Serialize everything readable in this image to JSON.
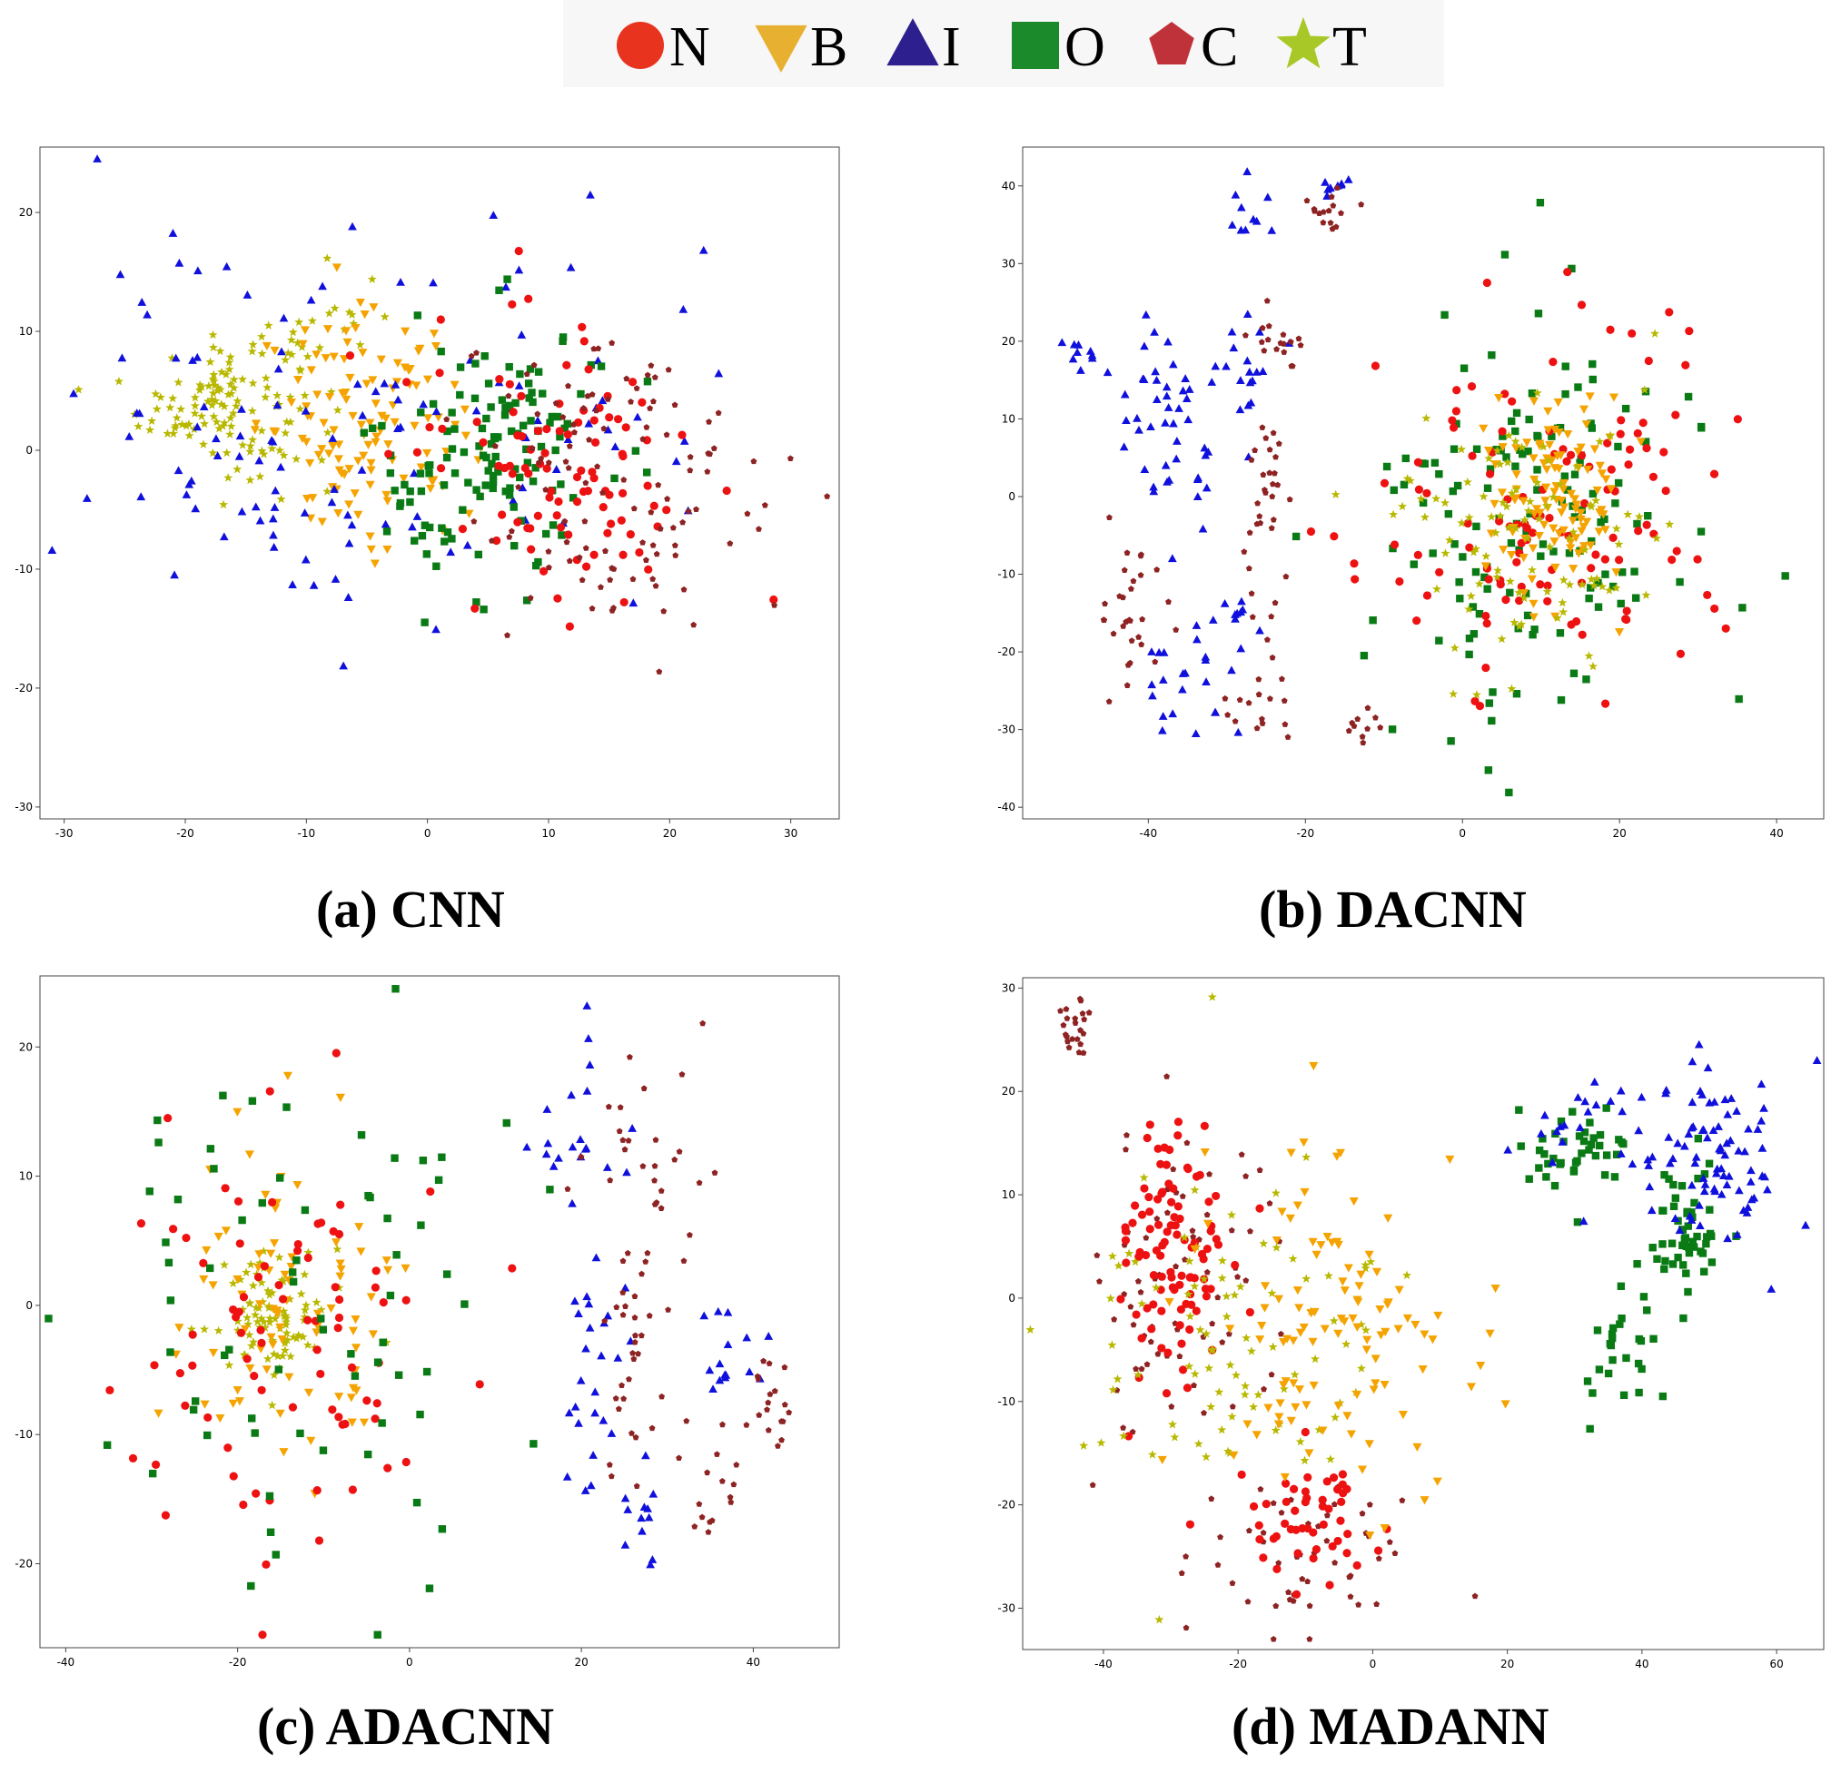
{
  "legend": [
    {
      "label": "N",
      "class": "N",
      "shape": "circle",
      "color": "#e8331e"
    },
    {
      "label": "B",
      "class": "B",
      "shape": "triangle-down",
      "color": "#e8b030"
    },
    {
      "label": "I",
      "class": "I",
      "shape": "triangle-up",
      "color": "#2e1f8f"
    },
    {
      "label": "O",
      "class": "O",
      "shape": "square",
      "color": "#1a8a2a"
    },
    {
      "label": "C",
      "class": "C",
      "shape": "pentagon",
      "color": "#c0323a"
    },
    {
      "label": "T",
      "class": "T",
      "shape": "star",
      "color": "#a8c828"
    }
  ],
  "point_colors": {
    "N": "#ee1111",
    "B": "#f5a300",
    "I": "#1010dd",
    "O": "#0a7a14",
    "C": "#8e2323",
    "T": "#b8b800"
  },
  "chart_data": [
    {
      "type": "scatter",
      "title": "",
      "caption": "(a) CNN",
      "xlim": [
        -32,
        34
      ],
      "ylim": [
        -31,
        25.5
      ],
      "xticks": [
        -30,
        -20,
        -10,
        0,
        10,
        20,
        30
      ],
      "yticks": [
        -30,
        -20,
        -10,
        0,
        10,
        20
      ],
      "series": [
        {
          "name": "T",
          "clusters": [
            {
              "cx": -17,
              "cy": 4,
              "sx": 4.5,
              "sy": 4,
              "n": 110
            },
            {
              "cx": -10,
              "cy": 8,
              "sx": 5,
              "sy": 5,
              "n": 30
            }
          ]
        },
        {
          "name": "B",
          "clusters": [
            {
              "cx": -5,
              "cy": 2,
              "sx": 6,
              "sy": 6,
              "n": 120
            }
          ]
        },
        {
          "name": "I",
          "clusters": [
            {
              "cx": -10,
              "cy": 2,
              "sx": 12,
              "sy": 11,
              "n": 90
            },
            {
              "cx": 10,
              "cy": 5,
              "sx": 10,
              "sy": 10,
              "n": 30
            }
          ]
        },
        {
          "name": "O",
          "clusters": [
            {
              "cx": 5,
              "cy": -1,
              "sx": 6.5,
              "sy": 8,
              "n": 130
            }
          ]
        },
        {
          "name": "N",
          "clusters": [
            {
              "cx": 11,
              "cy": 0,
              "sx": 8,
              "sy": 8,
              "n": 100
            }
          ]
        },
        {
          "name": "C",
          "clusters": [
            {
              "cx": 16,
              "cy": -3,
              "sx": 9,
              "sy": 10,
              "n": 110
            }
          ]
        }
      ]
    },
    {
      "type": "scatter",
      "title": "",
      "caption": "(b) DACNN",
      "xlim": [
        -56,
        46
      ],
      "ylim": [
        -41.5,
        45
      ],
      "xticks": [
        -40,
        -20,
        0,
        20,
        40
      ],
      "yticks": [
        -40,
        -30,
        -20,
        -10,
        0,
        10,
        20,
        30,
        40
      ],
      "series": [
        {
          "name": "I",
          "clusters": [
            {
              "cx": -48,
              "cy": 19,
              "sx": 2,
              "sy": 2,
              "n": 10
            },
            {
              "cx": -38,
              "cy": 10,
              "sx": 4,
              "sy": 9,
              "n": 45
            },
            {
              "cx": -27,
              "cy": 36,
              "sx": 2,
              "sy": 3,
              "n": 10
            },
            {
              "cx": -16,
              "cy": 40,
              "sx": 2,
              "sy": 1,
              "n": 8
            },
            {
              "cx": -28,
              "cy": 15,
              "sx": 3,
              "sy": 6,
              "n": 18
            },
            {
              "cx": -35,
              "cy": -24,
              "sx": 4,
              "sy": 5,
              "n": 22
            },
            {
              "cx": -28,
              "cy": -15,
              "sx": 2,
              "sy": 3,
              "n": 10
            }
          ]
        },
        {
          "name": "C",
          "clusters": [
            {
              "cx": -42,
              "cy": -15,
              "sx": 3,
              "sy": 7,
              "n": 30
            },
            {
              "cx": -25,
              "cy": 0,
              "sx": 2,
              "sy": 12,
              "n": 35
            },
            {
              "cx": -23,
              "cy": 20,
              "sx": 2,
              "sy": 3,
              "n": 15
            },
            {
              "cx": -17,
              "cy": 37,
              "sx": 2,
              "sy": 3,
              "n": 15
            },
            {
              "cx": -25,
              "cy": -27,
              "sx": 3,
              "sy": 3,
              "n": 15
            },
            {
              "cx": -13,
              "cy": -30,
              "sx": 3,
              "sy": 1.5,
              "n": 10
            }
          ]
        },
        {
          "name": "O",
          "clusters": [
            {
              "cx": 10,
              "cy": -2,
              "sx": 15,
              "sy": 18,
              "n": 140
            }
          ]
        },
        {
          "name": "N",
          "clusters": [
            {
              "cx": 10,
              "cy": -2,
              "sx": 14,
              "sy": 16,
              "n": 120
            }
          ]
        },
        {
          "name": "B",
          "clusters": [
            {
              "cx": 12,
              "cy": 0,
              "sx": 6,
              "sy": 8,
              "n": 110
            }
          ]
        },
        {
          "name": "T",
          "clusters": [
            {
              "cx": 8,
              "cy": -3,
              "sx": 11,
              "sy": 12,
              "n": 100
            }
          ]
        }
      ]
    },
    {
      "type": "scatter",
      "title": "",
      "caption": "(c) ADACNN",
      "xlim": [
        -43,
        50
      ],
      "ylim": [
        -26.5,
        25.5
      ],
      "xticks": [
        -40,
        -20,
        0,
        20,
        40
      ],
      "yticks": [
        -20,
        -10,
        0,
        10,
        20
      ],
      "series": [
        {
          "name": "T",
          "clusters": [
            {
              "cx": -16,
              "cy": -1,
              "sx": 4,
              "sy": 4,
              "n": 90
            }
          ]
        },
        {
          "name": "B",
          "clusters": [
            {
              "cx": -15,
              "cy": 0,
              "sx": 9,
              "sy": 9,
              "n": 80
            }
          ]
        },
        {
          "name": "N",
          "clusters": [
            {
              "cx": -15,
              "cy": -2,
              "sx": 12,
              "sy": 11,
              "n": 80
            }
          ]
        },
        {
          "name": "O",
          "clusters": [
            {
              "cx": -12,
              "cy": 0,
              "sx": 16,
              "sy": 13,
              "n": 70
            }
          ]
        },
        {
          "name": "I",
          "clusters": [
            {
              "cx": 20,
              "cy": 15,
              "sx": 3,
              "sy": 5,
              "n": 20
            },
            {
              "cx": 21,
              "cy": -5,
              "sx": 3,
              "sy": 7,
              "n": 25
            },
            {
              "cx": 27,
              "cy": -16,
              "sx": 2,
              "sy": 2,
              "n": 12
            },
            {
              "cx": 38,
              "cy": -4,
              "sx": 3,
              "sy": 3,
              "n": 15
            }
          ]
        },
        {
          "name": "C",
          "clusters": [
            {
              "cx": 27,
              "cy": 12,
              "sx": 4,
              "sy": 8,
              "n": 30
            },
            {
              "cx": 26,
              "cy": -5,
              "sx": 2,
              "sy": 8,
              "n": 30
            },
            {
              "cx": 36,
              "cy": -14,
              "sx": 3,
              "sy": 3,
              "n": 15
            },
            {
              "cx": 43,
              "cy": -8,
              "sx": 2,
              "sy": 3,
              "n": 18
            }
          ]
        }
      ]
    },
    {
      "type": "scatter",
      "title": "",
      "caption": "(d) MADANN",
      "xlim": [
        -52,
        67
      ],
      "ylim": [
        -34,
        31
      ],
      "xticks": [
        -40,
        -20,
        0,
        20,
        40,
        60
      ],
      "yticks": [
        -30,
        -20,
        -10,
        0,
        10,
        20,
        30
      ],
      "series": [
        {
          "name": "C",
          "clusters": [
            {
              "cx": -44,
              "cy": 26,
              "sx": 2,
              "sy": 2,
              "n": 22
            },
            {
              "cx": -30,
              "cy": 0,
              "sx": 9,
              "sy": 12,
              "n": 70
            },
            {
              "cx": -10,
              "cy": -25,
              "sx": 10,
              "sy": 5,
              "n": 50
            }
          ]
        },
        {
          "name": "N",
          "clusters": [
            {
              "cx": -30,
              "cy": 5,
              "sx": 6,
              "sy": 9,
              "n": 100
            },
            {
              "cx": -10,
              "cy": -22,
              "sx": 8,
              "sy": 4,
              "n": 50
            }
          ]
        },
        {
          "name": "T",
          "clusters": [
            {
              "cx": -20,
              "cy": -5,
              "sx": 14,
              "sy": 12,
              "n": 90
            }
          ]
        },
        {
          "name": "B",
          "clusters": [
            {
              "cx": -5,
              "cy": -5,
              "sx": 14,
              "sy": 11,
              "n": 110
            }
          ]
        },
        {
          "name": "O",
          "clusters": [
            {
              "cx": 30,
              "cy": 15,
              "sx": 6,
              "sy": 3,
              "n": 40
            },
            {
              "cx": 47,
              "cy": 7,
              "sx": 4,
              "sy": 5,
              "n": 50
            },
            {
              "cx": 38,
              "cy": -5,
              "sx": 6,
              "sy": 6,
              "n": 30
            }
          ]
        },
        {
          "name": "I",
          "clusters": [
            {
              "cx": 50,
              "cy": 14,
              "sx": 8,
              "sy": 6,
              "n": 90
            },
            {
              "cx": 30,
              "cy": 18,
              "sx": 5,
              "sy": 3,
              "n": 15
            }
          ]
        }
      ]
    }
  ]
}
